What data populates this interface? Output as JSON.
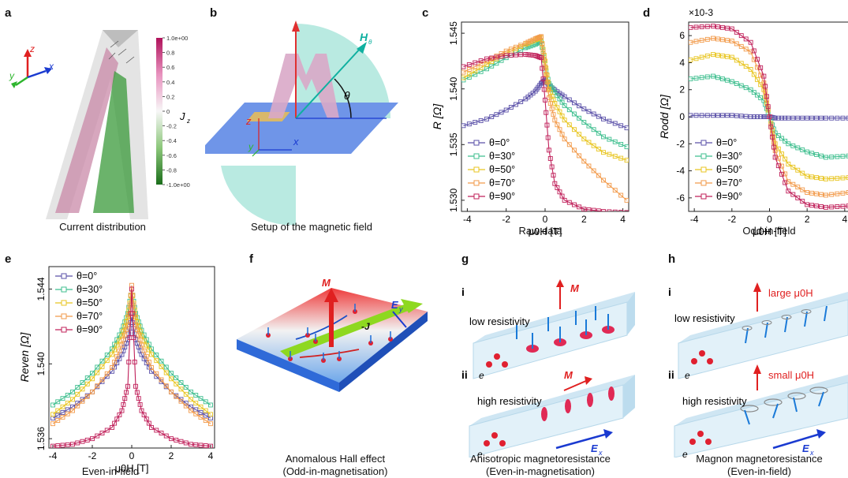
{
  "panels": {
    "a": {
      "label": "a",
      "caption": "Current distribution",
      "colorbar_label": "J",
      "colorbar_sub": "z",
      "colorbar_ticks": [
        "1.0e+00",
        "0.8",
        "0.6",
        "0.4",
        "0.2",
        "0",
        "-0.2",
        "-0.4",
        "-0.6",
        "-0.8",
        "-1.0e+00"
      ],
      "axes": {
        "x": "x",
        "y": "y",
        "z": "z"
      }
    },
    "b": {
      "label": "b",
      "caption": "Setup of the magnetic field",
      "field_label": "H",
      "field_sub": "θ",
      "angle": "θ",
      "axes": {
        "x": "x",
        "y": "y",
        "z": "z"
      }
    },
    "c": {
      "label": "c",
      "caption": "Raw data",
      "ylabel": "R [Ω]",
      "xlabel": "μ0H [T]"
    },
    "d": {
      "label": "d",
      "caption": "Odd-in-field",
      "ylabel": "Rodd [Ω]",
      "xlabel": "μ0H [T]",
      "exponent": "×10-3"
    },
    "e": {
      "label": "e",
      "caption": "Even-in-field",
      "ylabel": "Reven [Ω]",
      "xlabel": "μ0H [T]"
    },
    "f": {
      "label": "f",
      "caption_line1": "Anomalous Hall effect",
      "caption_line2": "(Odd-in-magnetisation)",
      "M": "M",
      "J": "-J",
      "E": "E",
      "E_sub": "y"
    },
    "g": {
      "label": "g",
      "caption_line1": "Anisotropic magnetoresistance",
      "caption_line2": "(Even-in-magnetisation)",
      "i": "i",
      "ii": "ii",
      "low": "low resistivity",
      "high": "high resistivity",
      "M": "M",
      "e": "e",
      "E": "E",
      "E_sub": "x"
    },
    "h": {
      "label": "h",
      "caption_line1": "Magnon magnetoresistance",
      "caption_line2": "(Even-in-field)",
      "i": "i",
      "ii": "ii",
      "low": "low resistivity",
      "high": "high resistivity",
      "large": "large μ0H",
      "small": "small μ0H",
      "e": "e",
      "E": "E",
      "E_sub": "x"
    }
  },
  "colors": {
    "series": [
      "#5a50a8",
      "#3fbf8f",
      "#e8c520",
      "#f29a4a",
      "#c0205a"
    ]
  },
  "chart_data": [
    {
      "panel": "c",
      "type": "line",
      "xlabel": "μ0H [T]",
      "ylabel": "R [Ω]",
      "xlim": [
        -4.3,
        4.3
      ],
      "ylim": [
        1.529,
        1.546
      ],
      "xticks": [
        -4,
        -2,
        0,
        2,
        4
      ],
      "yticks": [
        1.53,
        1.535,
        1.54,
        1.545
      ],
      "ytick_labels": [
        "1.530",
        "1.535",
        "1.540",
        "1.545"
      ],
      "legend": "bottom-left",
      "series": [
        {
          "name": "θ=0°",
          "x": [
            -4.2,
            -3,
            -2,
            -1,
            -0.5,
            -0.2,
            0,
            0.2,
            0.5,
            1,
            2,
            3,
            4.2
          ],
          "y": [
            1.5367,
            1.5373,
            1.5381,
            1.5391,
            1.5398,
            1.5405,
            1.5408,
            1.5403,
            1.5399,
            1.5393,
            1.5382,
            1.5373,
            1.5365
          ]
        },
        {
          "name": "θ=30°",
          "x": [
            -4.2,
            -3,
            -2,
            -1,
            -0.5,
            -0.2,
            0,
            0.2,
            0.5,
            1,
            2,
            3,
            4.2
          ],
          "y": [
            1.5408,
            1.5418,
            1.5428,
            1.5437,
            1.544,
            1.5443,
            1.542,
            1.5405,
            1.5397,
            1.5385,
            1.537,
            1.5357,
            1.5348
          ]
        },
        {
          "name": "θ=50°",
          "x": [
            -4.2,
            -3,
            -2,
            -1,
            -0.5,
            -0.2,
            0,
            0.2,
            0.5,
            1,
            2,
            3,
            4.2
          ],
          "y": [
            1.541,
            1.5422,
            1.5432,
            1.544,
            1.5444,
            1.5446,
            1.5425,
            1.54,
            1.5387,
            1.5372,
            1.5355,
            1.5343,
            1.5336
          ]
        },
        {
          "name": "θ=70°",
          "x": [
            -4.2,
            -3,
            -2,
            -1,
            -0.5,
            -0.2,
            0,
            0.2,
            0.5,
            1,
            2,
            3,
            4.2
          ],
          "y": [
            1.5415,
            1.5425,
            1.5434,
            1.5441,
            1.5445,
            1.5447,
            1.542,
            1.5392,
            1.5372,
            1.5355,
            1.5335,
            1.5318,
            1.53
          ]
        },
        {
          "name": "θ=90°",
          "x": [
            -4.2,
            -3,
            -2,
            -1,
            -0.5,
            -0.2,
            0,
            0.2,
            0.5,
            1,
            2,
            3,
            4.2
          ],
          "y": [
            1.542,
            1.5427,
            1.543,
            1.5431,
            1.543,
            1.5428,
            1.539,
            1.5345,
            1.5315,
            1.53,
            1.5292,
            1.529,
            1.5289
          ]
        }
      ]
    },
    {
      "panel": "d",
      "type": "line",
      "xlabel": "μ0H [T]",
      "ylabel": "Rodd [Ω]",
      "exponent": "×10-3",
      "xlim": [
        -4.3,
        4.3
      ],
      "ylim": [
        -7,
        7
      ],
      "xticks": [
        -4,
        -2,
        0,
        2,
        4
      ],
      "yticks": [
        -6,
        -4,
        -2,
        0,
        2,
        4,
        6
      ],
      "legend": "bottom-left",
      "series": [
        {
          "name": "θ=0°",
          "x": [
            -4.2,
            -3,
            -2,
            -1,
            -0.3,
            0,
            0.3,
            1,
            2,
            3,
            4.2
          ],
          "y": [
            0.1,
            0.1,
            0.1,
            0.0,
            0.0,
            0.0,
            -0.1,
            -0.1,
            -0.1,
            -0.1,
            -0.1
          ]
        },
        {
          "name": "θ=30°",
          "x": [
            -4.2,
            -3,
            -2,
            -1,
            -0.3,
            0,
            0.3,
            1,
            2,
            3,
            4.2
          ],
          "y": [
            2.8,
            3.0,
            2.6,
            2.0,
            1.2,
            0.0,
            -1.2,
            -2.0,
            -2.6,
            -3.0,
            -2.9
          ]
        },
        {
          "name": "θ=50°",
          "x": [
            -4.2,
            -3,
            -2,
            -1,
            -0.3,
            0,
            0.3,
            1,
            2,
            3,
            4.2
          ],
          "y": [
            4.2,
            4.6,
            4.4,
            3.5,
            2.0,
            0.0,
            -2.0,
            -3.5,
            -4.4,
            -4.6,
            -4.5
          ]
        },
        {
          "name": "θ=70°",
          "x": [
            -4.2,
            -3,
            -2,
            -1,
            -0.3,
            0,
            0.3,
            1,
            2,
            3,
            4.2
          ],
          "y": [
            5.5,
            5.8,
            5.6,
            4.8,
            2.5,
            0.0,
            -2.5,
            -4.8,
            -5.6,
            -5.8,
            -5.6
          ]
        },
        {
          "name": "θ=90°",
          "x": [
            -4.2,
            -3,
            -2,
            -1,
            -0.3,
            0,
            0.3,
            1,
            2,
            3,
            4.2
          ],
          "y": [
            6.6,
            6.7,
            6.5,
            5.5,
            3.0,
            0.0,
            -3.0,
            -5.5,
            -6.5,
            -6.7,
            -6.6
          ]
        }
      ]
    },
    {
      "panel": "e",
      "type": "line",
      "xlabel": "μ0H [T]",
      "ylabel": "Reven [Ω]",
      "xlim": [
        -4.2,
        4.2
      ],
      "ylim": [
        1.5355,
        1.5452
      ],
      "xticks": [
        -4,
        -2,
        0,
        2,
        4
      ],
      "yticks": [
        1.536,
        1.54,
        1.544
      ],
      "ytick_labels": [
        "1.536",
        "1.540",
        "1.544"
      ],
      "legend": "top-left",
      "series": [
        {
          "name": "θ=0°",
          "x": [
            -4,
            -3,
            -2,
            -1,
            -0.5,
            -0.2,
            0,
            0.2,
            0.5,
            1,
            2,
            3,
            4
          ],
          "y": [
            1.5371,
            1.5377,
            1.5385,
            1.5396,
            1.5405,
            1.5413,
            1.5425,
            1.5413,
            1.5405,
            1.5396,
            1.5385,
            1.5377,
            1.5371
          ]
        },
        {
          "name": "θ=30°",
          "x": [
            -4,
            -3,
            -2,
            -1,
            -0.5,
            -0.2,
            0,
            0.2,
            0.5,
            1,
            2,
            3,
            4
          ],
          "y": [
            1.5378,
            1.5385,
            1.5395,
            1.5408,
            1.5418,
            1.5427,
            1.544,
            1.5427,
            1.5418,
            1.5408,
            1.5395,
            1.5385,
            1.5378
          ]
        },
        {
          "name": "θ=50°",
          "x": [
            -4,
            -3,
            -2,
            -1,
            -0.5,
            -0.2,
            0,
            0.2,
            0.5,
            1,
            2,
            3,
            4
          ],
          "y": [
            1.5373,
            1.5381,
            1.5392,
            1.5405,
            1.5415,
            1.5425,
            1.544,
            1.5425,
            1.5415,
            1.5405,
            1.5392,
            1.5381,
            1.5373
          ]
        },
        {
          "name": "θ=70°",
          "x": [
            -4,
            -3,
            -2,
            -1,
            -0.5,
            -0.2,
            0,
            0.2,
            0.5,
            1,
            2,
            3,
            4
          ],
          "y": [
            1.5368,
            1.5375,
            1.5385,
            1.5398,
            1.541,
            1.5421,
            1.5442,
            1.5421,
            1.541,
            1.5398,
            1.5385,
            1.5375,
            1.5368
          ]
        },
        {
          "name": "θ=90°",
          "x": [
            -4,
            -3,
            -2,
            -1,
            -0.5,
            -0.2,
            0,
            0.2,
            0.5,
            1,
            2,
            3,
            4
          ],
          "y": [
            1.5356,
            1.5357,
            1.536,
            1.5366,
            1.5375,
            1.5388,
            1.544,
            1.5388,
            1.5375,
            1.5366,
            1.536,
            1.5357,
            1.5356
          ]
        }
      ]
    }
  ]
}
